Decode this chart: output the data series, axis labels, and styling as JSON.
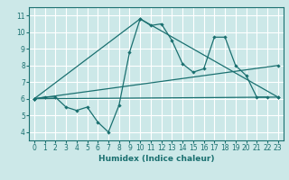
{
  "xlabel": "Humidex (Indice chaleur)",
  "bg_color": "#cce8e8",
  "line_color": "#1a7070",
  "grid_color": "#ffffff",
  "xlim": [
    -0.5,
    23.5
  ],
  "ylim": [
    3.5,
    11.5
  ],
  "xticks": [
    0,
    1,
    2,
    3,
    4,
    5,
    6,
    7,
    8,
    9,
    10,
    11,
    12,
    13,
    14,
    15,
    16,
    17,
    18,
    19,
    20,
    21,
    22,
    23
  ],
  "yticks": [
    4,
    5,
    6,
    7,
    8,
    9,
    10,
    11
  ],
  "series_main": {
    "x": [
      0,
      1,
      2,
      3,
      4,
      5,
      6,
      7,
      8,
      9,
      10,
      11,
      12,
      13,
      14,
      15,
      16,
      17,
      18,
      19,
      20,
      21,
      22
    ],
    "y": [
      6.0,
      6.1,
      6.1,
      5.5,
      5.3,
      5.5,
      4.6,
      4.0,
      5.6,
      8.8,
      10.8,
      10.4,
      10.5,
      9.5,
      8.1,
      7.6,
      7.8,
      9.7,
      9.7,
      8.0,
      7.4,
      6.1,
      6.1
    ]
  },
  "series_upper": {
    "x": [
      0,
      10,
      23
    ],
    "y": [
      6.0,
      10.8,
      6.1
    ]
  },
  "series_lower1": {
    "x": [
      0,
      23
    ],
    "y": [
      6.0,
      8.0
    ]
  },
  "series_lower2": {
    "x": [
      0,
      23
    ],
    "y": [
      6.0,
      6.1
    ]
  }
}
